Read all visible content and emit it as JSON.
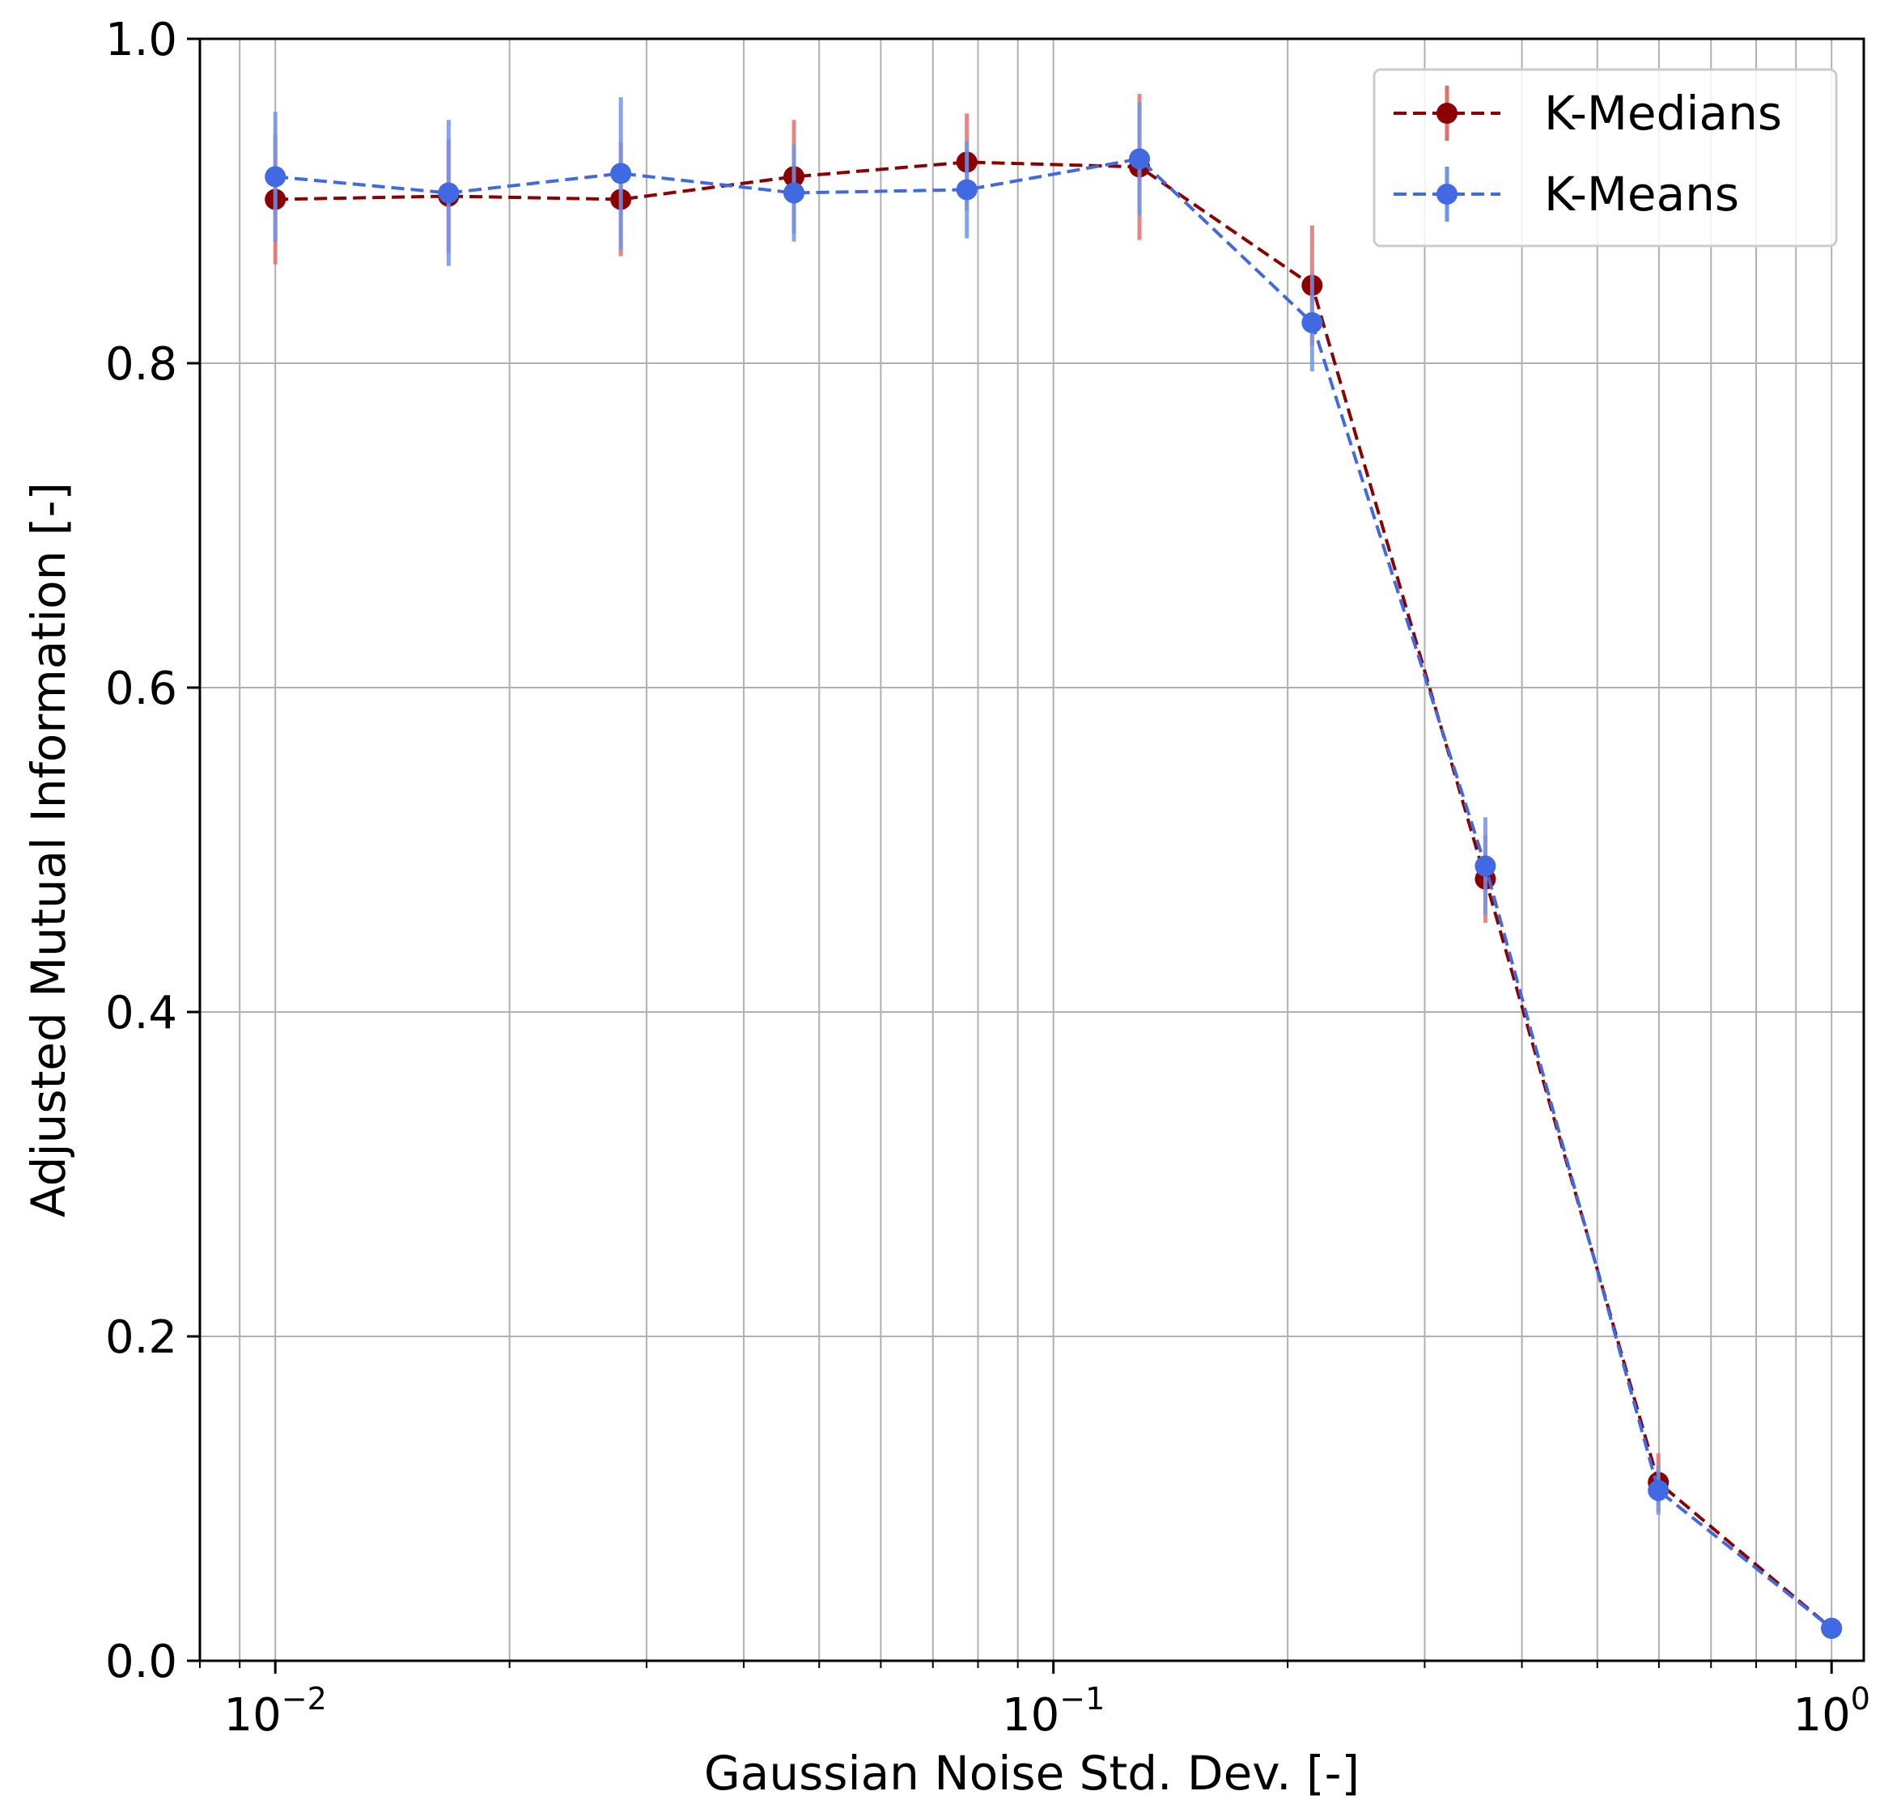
{
  "chart_data": {
    "type": "line",
    "title": "",
    "xlabel": "Gaussian Noise Std. Dev. [-]",
    "ylabel": "Adjusted Mutual Information [-]",
    "x_scale": "log",
    "xlim": [
      0.008,
      1.1
    ],
    "ylim": [
      0.0,
      1.0
    ],
    "grid": true,
    "grid_minor_x": true,
    "legend_position": "top-right",
    "x_ticks": [
      {
        "value": 0.01,
        "base": "10",
        "exp": "−2"
      },
      {
        "value": 0.1,
        "base": "10",
        "exp": "−1"
      },
      {
        "value": 1,
        "base": "10",
        "exp": "0"
      }
    ],
    "y_ticks": [
      {
        "value": 0.0,
        "label": "0.0"
      },
      {
        "value": 0.2,
        "label": "0.2"
      },
      {
        "value": 0.4,
        "label": "0.4"
      },
      {
        "value": 0.6,
        "label": "0.6"
      },
      {
        "value": 0.8,
        "label": "0.8"
      },
      {
        "value": 1.0,
        "label": "1.0"
      }
    ],
    "x": [
      0.01,
      0.0167,
      0.0278,
      0.0464,
      0.0774,
      0.129,
      0.215,
      0.359,
      0.599,
      1.0
    ],
    "series": [
      {
        "name": "K-Medians",
        "color": "#8b0000",
        "error_color": "#e07070",
        "y": [
          0.901,
          0.903,
          0.901,
          0.915,
          0.924,
          0.921,
          0.848,
          0.482,
          0.11,
          0.02
        ],
        "yerr": [
          0.04,
          0.035,
          0.035,
          0.035,
          0.03,
          0.045,
          0.037,
          0.027,
          0.018,
          0.005
        ]
      },
      {
        "name": "K-Means",
        "color": "#4169e1",
        "error_color": "#6f94ea",
        "y": [
          0.915,
          0.905,
          0.917,
          0.905,
          0.907,
          0.926,
          0.825,
          0.49,
          0.105,
          0.02
        ],
        "yerr": [
          0.04,
          0.045,
          0.047,
          0.03,
          0.03,
          0.035,
          0.03,
          0.03,
          0.015,
          0.005
        ]
      }
    ]
  }
}
